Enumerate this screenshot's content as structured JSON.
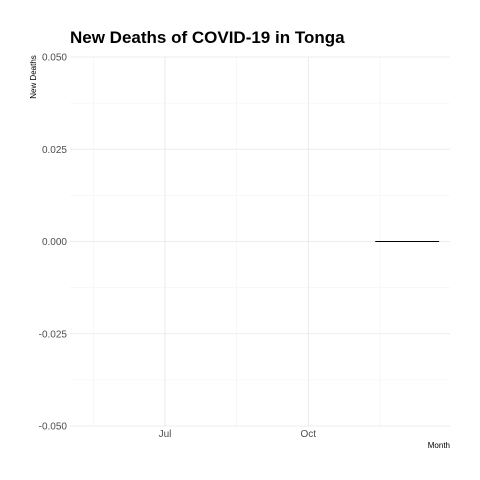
{
  "chart_data": {
    "type": "line",
    "title": "New Deaths of COVID-19 in Tonga",
    "xlabel": "Month",
    "ylabel": "New Deaths",
    "x_type": "date",
    "xlim": [
      "2020-05-01",
      "2020-12-31"
    ],
    "ylim": [
      -0.05,
      0.05
    ],
    "x_ticks": [
      {
        "value": "2020-07-01",
        "label": "Jul"
      },
      {
        "value": "2020-10-01",
        "label": "Oct"
      }
    ],
    "x_minor_ticks": [
      "2020-05-16",
      "2020-08-16",
      "2020-11-16"
    ],
    "y_ticks": [
      {
        "value": -0.05,
        "label": "-0.050"
      },
      {
        "value": -0.025,
        "label": "-0.025"
      },
      {
        "value": 0.0,
        "label": "0.000"
      },
      {
        "value": 0.025,
        "label": "0.025"
      },
      {
        "value": 0.05,
        "label": "0.050"
      }
    ],
    "y_minor_ticks": [
      -0.0375,
      -0.0125,
      0.0125,
      0.0375
    ],
    "grid": true,
    "series": [
      {
        "color": "#000000",
        "x": [
          "2020-11-13",
          "2020-12-24"
        ],
        "y": [
          0,
          0
        ]
      }
    ]
  }
}
